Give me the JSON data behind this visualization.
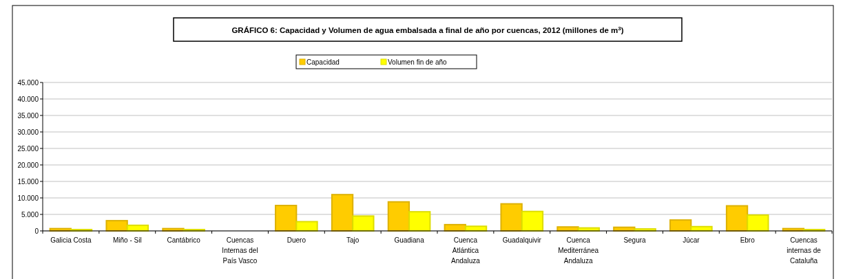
{
  "chart_data": {
    "type": "bar",
    "title": "GRÁFICO 6: Capacidad y Volumen de agua embalsada a final de año por cuencas, 2012 (millones de m$^{3}$)",
    "categories": [
      "Galicia Costa",
      "Miño - Sil",
      "Cantábrico",
      "Cuencas Internas del País Vasco",
      "Duero",
      "Tajo",
      "Guadiana",
      "Cuenca Atlántica Andaluza",
      "Guadalquivir",
      "Cuenca Mediterránea Andaluza",
      "Segura",
      "Júcar",
      "Ebro",
      "Cuencas internas de Cataluña"
    ],
    "series": [
      {
        "name": "Capacidad",
        "color": "#ffcc00",
        "values": [
          700,
          3100,
          700,
          null,
          7700,
          11000,
          8800,
          1900,
          8200,
          1200,
          1100,
          3300,
          7600,
          700
        ]
      },
      {
        "name": "Volumen fin de año",
        "color": "#ffff00",
        "values": [
          400,
          1700,
          400,
          null,
          2800,
          4500,
          5800,
          1400,
          5900,
          900,
          600,
          1300,
          4800,
          400
        ]
      }
    ],
    "ylim": [
      0,
      45000
    ],
    "yticks": [
      0,
      {
        "value": 5000,
        "label": "5.000"
      },
      {
        "value": 10000,
        "label": "10.000"
      },
      {
        "value": 15000,
        "label": "15.000"
      },
      {
        "value": 20000,
        "label": "20.000"
      },
      {
        "value": 25000,
        "label": "25.000"
      },
      {
        "value": 30000,
        "label": "30.000"
      },
      {
        "value": 35000,
        "label": "35.000"
      },
      {
        "value": 40000,
        "label": "40.000"
      },
      {
        "value": 45000,
        "label": "45.000"
      }
    ],
    "grid": "y",
    "legend": "top"
  }
}
